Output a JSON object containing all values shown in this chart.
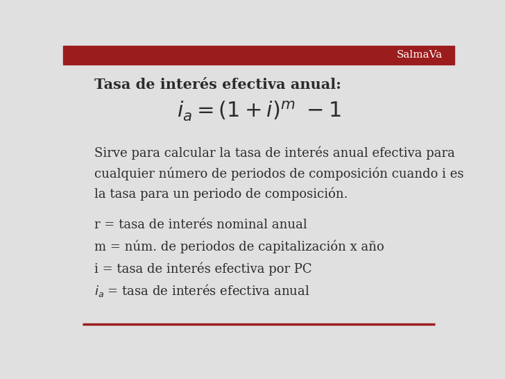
{
  "bg_color": "#e0e0e0",
  "header_color": "#9b1c1c",
  "header_text": "SalmaVa",
  "header_text_color": "#ffffff",
  "title_bold": "Tasa de interés efectiva anual:",
  "description": "Sirve para calcular la tasa de interés anual efectiva para\ncualquier número de periodos de composición cuando i es\nla tasa para un periodo de composición.",
  "variables": [
    "r = tasa de interés nominal anual",
    "m = núm. de periodos de capitalización x año",
    "i = tasa de interés efectiva por PC"
  ],
  "last_variable_prefix": "i",
  "last_variable_suffix": " = tasa de interés efectiva anual",
  "bottom_line_color": "#9b1c1c",
  "text_color": "#2c2c2c",
  "font_size_header": 11,
  "font_size_title": 15,
  "font_size_formula": 22,
  "font_size_body": 13,
  "font_size_vars": 13
}
